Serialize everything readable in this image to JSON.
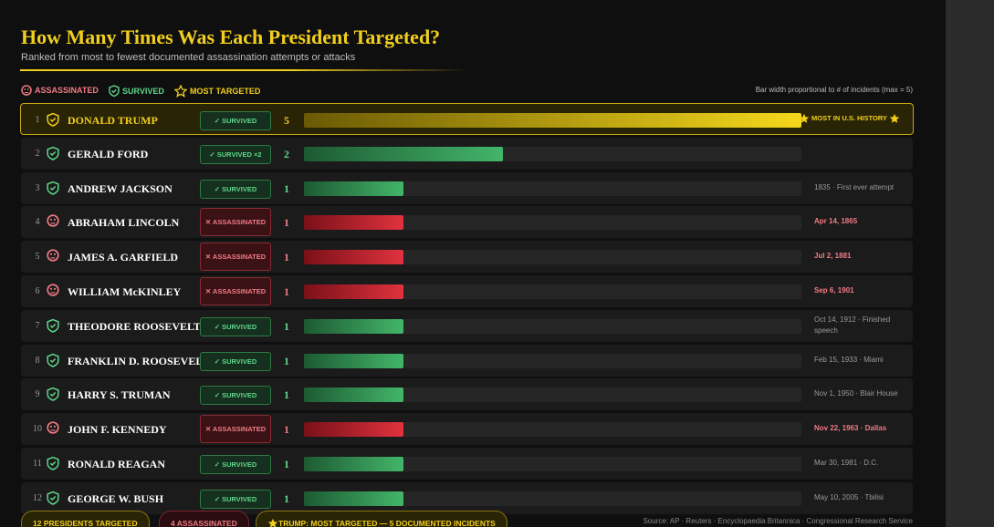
{
  "header": {
    "title": "How Many Times Was Each President Targeted?",
    "subtitle": "Ranked from most to fewest documented assassination attempts or attacks"
  },
  "legend": {
    "items": [
      "ASSASSINATED",
      "SURVIVED",
      "MOST TARGETED"
    ],
    "note": "Bar width proportional to # of incidents (max = 5)"
  },
  "rows": [
    {
      "rank": 1,
      "name": "DONALD TRUMP",
      "badge": "✓ SURVIVED",
      "kind": "top",
      "count": 5,
      "note": "MOST IN U.S. HISTORY"
    },
    {
      "rank": 2,
      "name": "GERALD FORD",
      "badge": "✓ SURVIVED ×2",
      "kind": "survived",
      "count": 2
    },
    {
      "rank": 3,
      "name": "ANDREW JACKSON",
      "badge": "✓ SURVIVED",
      "kind": "survived",
      "count": 1,
      "note": "1835 · First ever attempt"
    },
    {
      "rank": 4,
      "name": "ABRAHAM LINCOLN",
      "badge": "✕ ASSASSINATED",
      "kind": "assassinated",
      "count": 1,
      "note": "Apr 14, 1865"
    },
    {
      "rank": 5,
      "name": "JAMES A. GARFIELD",
      "badge": "✕ ASSASSINATED",
      "kind": "assassinated",
      "count": 1,
      "note": "Jul 2, 1881"
    },
    {
      "rank": 6,
      "name": "WILLIAM McKINLEY",
      "badge": "✕ ASSASSINATED",
      "kind": "assassinated",
      "count": 1,
      "note": "Sep 6, 1901"
    },
    {
      "rank": 7,
      "name": "THEODORE ROOSEVELT",
      "badge": "✓ SURVIVED",
      "kind": "survived",
      "count": 1,
      "note": "Oct 14, 1912 · Finished speech"
    },
    {
      "rank": 8,
      "name": "FRANKLIN D. ROOSEVELT",
      "badge": "✓ SURVIVED",
      "kind": "survived",
      "count": 1,
      "note": "Feb 15, 1933 · Miami"
    },
    {
      "rank": 9,
      "name": "HARRY S. TRUMAN",
      "badge": "✓ SURVIVED",
      "kind": "survived",
      "count": 1,
      "note": "Nov 1, 1950 · Blair House"
    },
    {
      "rank": 10,
      "name": "JOHN F. KENNEDY",
      "badge": "✕ ASSASSINATED",
      "kind": "assassinated",
      "count": 1,
      "note": "Nov 22, 1963 · Dallas"
    },
    {
      "rank": 11,
      "name": "RONALD REAGAN",
      "badge": "✓ SURVIVED",
      "kind": "survived",
      "count": 1,
      "note": "Mar 30, 1981 · D.C."
    },
    {
      "rank": 12,
      "name": "GEORGE W. BUSH",
      "badge": "✓ SURVIVED",
      "kind": "survived",
      "count": 1,
      "note": "May 10, 2005 · Tbilisi"
    }
  ],
  "footer": {
    "pills": [
      "12 PRESIDENTS TARGETED",
      "4 ASSASSINATED",
      "TRUMP: MOST TARGETED — 5 DOCUMENTED INCIDENTS"
    ],
    "source": "Source: AP · Reuters · Encyclopaedia Britannica · Congressional Research Service"
  }
}
